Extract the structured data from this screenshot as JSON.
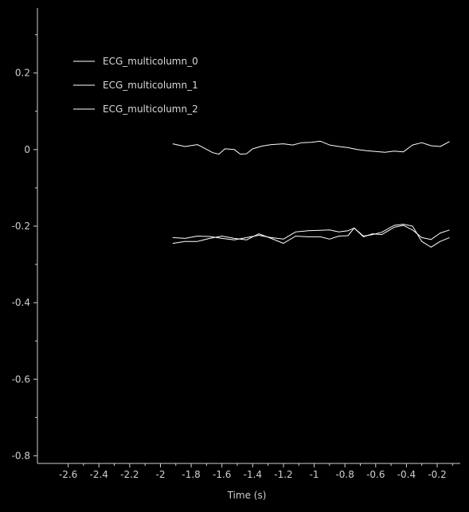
{
  "chart_data": {
    "type": "line",
    "title": "",
    "xlabel": "Time (s)",
    "ylabel": "",
    "xlim": [
      -2.8,
      -0.05
    ],
    "ylim": [
      -0.82,
      0.37
    ],
    "x_ticks": [
      -2.6,
      -2.4,
      -2.2,
      -2,
      -1.8,
      -1.6,
      -1.4,
      -1.2,
      -1,
      -0.8,
      -0.6,
      -0.4,
      -0.2
    ],
    "x_tick_labels": [
      "-2.6",
      "-2.4",
      "-2.2",
      "-2",
      "-1.8",
      "-1.6",
      "-1.4",
      "-1.2",
      "-1",
      "-0.8",
      "-0.6",
      "-0.4",
      "-0.2"
    ],
    "x_minor_ticks": [
      -2.5,
      -2.3,
      -2.1,
      -1.9,
      -1.7,
      -1.5,
      -1.3,
      -1.1,
      -0.9,
      -0.7,
      -0.5,
      -0.3,
      -0.1
    ],
    "y_ticks": [
      0.2,
      0,
      -0.2,
      -0.4,
      -0.6,
      -0.8
    ],
    "y_tick_labels": [
      "0.2",
      "0",
      "-0.2",
      "-0.4",
      "-0.6",
      "-0.8"
    ],
    "y_minor_ticks": [
      0.3,
      0.1,
      -0.1,
      -0.3,
      -0.5,
      -0.7
    ],
    "grid": false,
    "legend_position": "top-left",
    "background_color": "#000000",
    "axis_color": "#d0d0d0",
    "line_color": "#ffffff",
    "series": [
      {
        "name": "ECG_multicolumn_0",
        "x": [
          -1.92,
          -1.84,
          -1.76,
          -1.72,
          -1.66,
          -1.62,
          -1.58,
          -1.52,
          -1.48,
          -1.44,
          -1.4,
          -1.34,
          -1.28,
          -1.2,
          -1.14,
          -1.08,
          -1.02,
          -0.96,
          -0.9,
          -0.84,
          -0.78,
          -0.72,
          -0.66,
          -0.6,
          -0.54,
          -0.48,
          -0.42,
          -0.36,
          -0.3,
          -0.24,
          -0.18,
          -0.12
        ],
        "y": [
          0.015,
          0.008,
          0.013,
          0.005,
          -0.008,
          -0.012,
          0.002,
          0.0,
          -0.012,
          -0.011,
          0.002,
          0.009,
          0.013,
          0.015,
          0.012,
          0.018,
          0.019,
          0.022,
          0.012,
          0.008,
          0.005,
          0.0,
          -0.003,
          -0.005,
          -0.007,
          -0.004,
          -0.006,
          0.012,
          0.018,
          0.01,
          0.008,
          0.021
        ]
      },
      {
        "name": "ECG_multicolumn_1",
        "x": [
          -1.92,
          -1.84,
          -1.76,
          -1.68,
          -1.6,
          -1.52,
          -1.44,
          -1.36,
          -1.28,
          -1.2,
          -1.12,
          -1.04,
          -0.96,
          -0.9,
          -0.84,
          -0.78,
          -0.74,
          -0.68,
          -0.62,
          -0.56,
          -0.48,
          -0.42,
          -0.36,
          -0.3,
          -0.24,
          -0.18,
          -0.12
        ],
        "y": [
          -0.23,
          -0.232,
          -0.226,
          -0.227,
          -0.232,
          -0.236,
          -0.23,
          -0.224,
          -0.23,
          -0.234,
          -0.215,
          -0.212,
          -0.211,
          -0.21,
          -0.215,
          -0.212,
          -0.205,
          -0.226,
          -0.222,
          -0.216,
          -0.198,
          -0.195,
          -0.2,
          -0.24,
          -0.255,
          -0.24,
          -0.23
        ]
      },
      {
        "name": "ECG_multicolumn_2",
        "x": [
          -1.92,
          -1.84,
          -1.76,
          -1.68,
          -1.6,
          -1.52,
          -1.44,
          -1.36,
          -1.28,
          -1.2,
          -1.12,
          -1.04,
          -0.96,
          -0.9,
          -0.84,
          -0.78,
          -0.74,
          -0.68,
          -0.62,
          -0.56,
          -0.48,
          -0.42,
          -0.36,
          -0.3,
          -0.24,
          -0.18,
          -0.12
        ],
        "y": [
          -0.245,
          -0.24,
          -0.24,
          -0.232,
          -0.226,
          -0.232,
          -0.236,
          -0.22,
          -0.232,
          -0.245,
          -0.226,
          -0.228,
          -0.228,
          -0.234,
          -0.226,
          -0.225,
          -0.205,
          -0.228,
          -0.22,
          -0.222,
          -0.203,
          -0.198,
          -0.21,
          -0.23,
          -0.235,
          -0.218,
          -0.21
        ]
      }
    ]
  }
}
